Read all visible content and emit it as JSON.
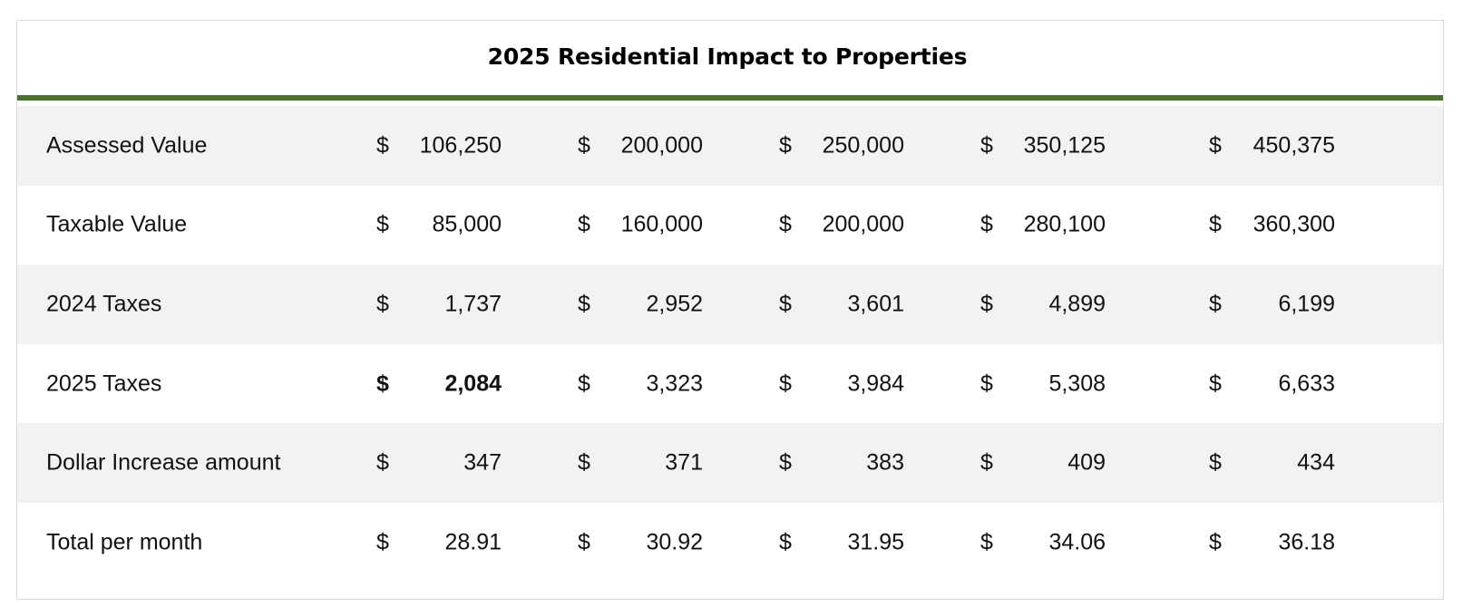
{
  "title": "2025 Residential Impact to Properties",
  "currency_symbol": "$",
  "accent_color": "#4a7030",
  "rows": [
    {
      "label": "Assessed Value",
      "values": [
        "106,250",
        "200,000",
        "250,000",
        "350,125",
        "450,375"
      ]
    },
    {
      "label": "Taxable Value",
      "values": [
        "85,000",
        "160,000",
        "200,000",
        "280,100",
        "360,300"
      ]
    },
    {
      "label": "2024 Taxes",
      "values": [
        "1,737",
        "2,952",
        "3,601",
        "4,899",
        "6,199"
      ]
    },
    {
      "label": "2025 Taxes",
      "values": [
        "2,084",
        "3,323",
        "3,984",
        "5,308",
        "6,633"
      ]
    },
    {
      "label": "Dollar Increase amount",
      "values": [
        "347",
        "371",
        "383",
        "409",
        "434"
      ]
    },
    {
      "label": "Total per month",
      "values": [
        "28.91",
        "30.92",
        "31.95",
        "34.06",
        "36.18"
      ]
    }
  ]
}
